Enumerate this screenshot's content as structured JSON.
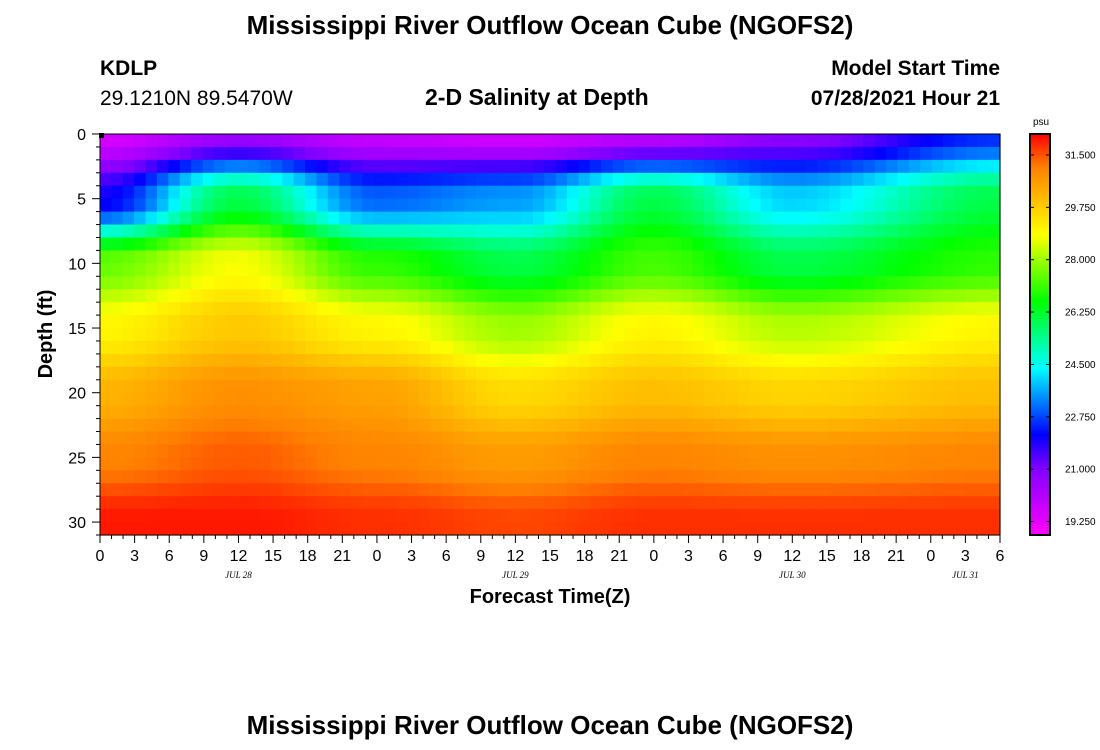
{
  "header": {
    "title_top": "Mississippi River Outflow Ocean Cube (NGOFS2)",
    "station_id": "KDLP",
    "station_coords": "29.1210N  89.5470W",
    "subtitle": "2-D Salinity at Depth",
    "model_start_label": "Model Start Time",
    "model_start_value": "07/28/2021 Hour 21"
  },
  "footer": {
    "title_bottom": "Mississippi River Outflow Ocean Cube (NGOFS2)"
  },
  "colors": {
    "background": "#ffffff",
    "axis": "#000000",
    "colormap": [
      "#ff00ff",
      "#c000ff",
      "#8000ff",
      "#0000ff",
      "#0080ff",
      "#00ffff",
      "#00ff80",
      "#00ff00",
      "#80ff00",
      "#ffff00",
      "#ffc000",
      "#ff8000",
      "#ff0000"
    ]
  },
  "chart_data": {
    "type": "heatmap",
    "title": "2-D Salinity at Depth",
    "xlabel": "Forecast Time(Z)",
    "ylabel": "Depth (ft)",
    "x_tick_labels": [
      "0",
      "3",
      "6",
      "9",
      "12",
      "15",
      "18",
      "21",
      "0",
      "3",
      "6",
      "9",
      "12",
      "15",
      "18",
      "21",
      "0",
      "3",
      "6",
      "9",
      "12",
      "15",
      "18",
      "21",
      "0",
      "3",
      "6"
    ],
    "x_range_hours": [
      0,
      78
    ],
    "date_labels": [
      {
        "label": "JUL 28",
        "hour": 12
      },
      {
        "label": "JUL 29",
        "hour": 36
      },
      {
        "label": "JUL 30",
        "hour": 60
      },
      {
        "label": "JUL 31",
        "hour": 75
      }
    ],
    "y_ticks": [
      0,
      5,
      10,
      15,
      20,
      25,
      30
    ],
    "ylim": [
      0,
      31
    ],
    "y_inverted": true,
    "colorbar": {
      "unit": "psu",
      "ticks": [
        "31.500",
        "29.750",
        "28.000",
        "26.250",
        "24.500",
        "22.750",
        "21.000",
        "19.250"
      ],
      "range": [
        18.8,
        32.2
      ]
    },
    "series": [
      {
        "depth": 0,
        "values": [
          19.5,
          20.5,
          19.8,
          19.6,
          20.0,
          20.8,
          22.5
        ]
      },
      {
        "depth": 5,
        "values": [
          22.0,
          26.0,
          23.0,
          23.5,
          26.0,
          24.0,
          26.0
        ]
      },
      {
        "depth": 10,
        "values": [
          27.5,
          28.8,
          27.0,
          26.0,
          27.2,
          26.0,
          27.0
        ]
      },
      {
        "depth": 15,
        "values": [
          29.0,
          29.8,
          29.0,
          28.0,
          29.0,
          28.2,
          29.0
        ]
      },
      {
        "depth": 20,
        "values": [
          30.2,
          30.8,
          30.5,
          29.5,
          30.0,
          29.6,
          30.0
        ]
      },
      {
        "depth": 25,
        "values": [
          31.0,
          31.4,
          31.0,
          30.6,
          31.0,
          30.8,
          31.0
        ]
      },
      {
        "depth": 30,
        "values": [
          32.0,
          32.0,
          31.8,
          31.6,
          31.8,
          31.8,
          31.8
        ]
      }
    ],
    "series_hours": [
      0,
      12,
      24,
      36,
      48,
      60,
      78
    ]
  }
}
